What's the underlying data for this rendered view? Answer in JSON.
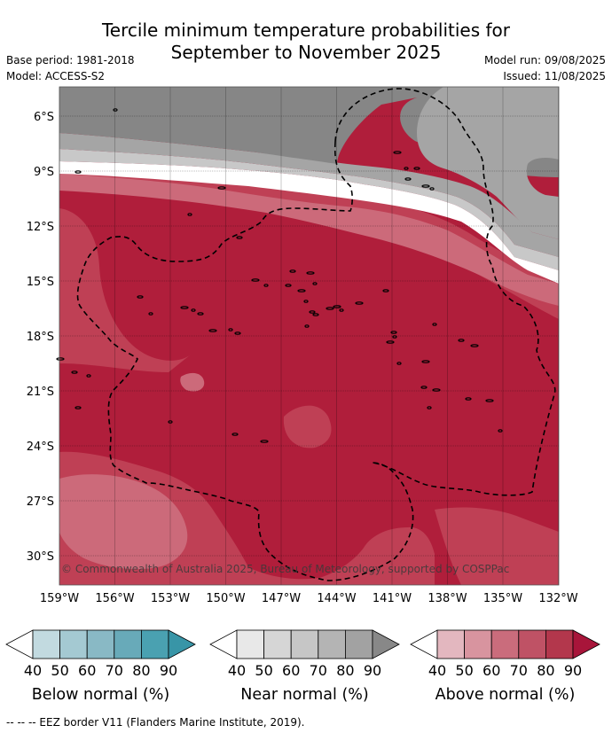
{
  "title": {
    "line1": "Tercile minimum temperature probabilities for",
    "line2": "September to November 2025"
  },
  "meta": {
    "base_period": "Base period: 1981-2018",
    "model": "Model: ACCESS-S2",
    "model_run": "Model run: 09/08/2025",
    "issued": "Issued: 11/08/2025"
  },
  "map": {
    "lat_labels": [
      "6°S",
      "9°S",
      "12°S",
      "15°S",
      "18°S",
      "21°S",
      "24°S",
      "27°S",
      "30°S"
    ],
    "lon_labels": [
      "159°W",
      "156°W",
      "153°W",
      "150°W",
      "147°W",
      "144°W",
      "141°W",
      "138°W",
      "135°W",
      "132°W"
    ],
    "copyright": "© Commonwealth of Australia 2025, Bureau of Meteorology, supported by COSPPac",
    "colors": {
      "above_90": "#b01e3b",
      "above_80": "#bf4055",
      "above_70": "#cc6a7a",
      "near_70": "#c8c8c8",
      "near_80": "#a5a5a5",
      "near_90": "#868686",
      "white": "#ffffff"
    }
  },
  "legends": [
    {
      "label": "Below normal (%)",
      "ticks": [
        "40",
        "50",
        "60",
        "70",
        "80",
        "90"
      ],
      "colors": [
        "#ffffff",
        "#c2dae0",
        "#a4c9d2",
        "#89b9c5",
        "#68aab9",
        "#4aa1b1",
        "#3895a7"
      ]
    },
    {
      "label": "Near normal (%)",
      "ticks": [
        "40",
        "50",
        "60",
        "70",
        "80",
        "90"
      ],
      "colors": [
        "#ffffff",
        "#e8e8e8",
        "#d6d6d6",
        "#c6c6c6",
        "#b4b4b4",
        "#a2a2a2",
        "#888888"
      ]
    },
    {
      "label": "Above normal (%)",
      "ticks": [
        "40",
        "50",
        "60",
        "70",
        "80",
        "90"
      ],
      "colors": [
        "#ffffff",
        "#e3b7bf",
        "#d8949f",
        "#ca6c7c",
        "#bf5265",
        "#b3374c",
        "#a8153a"
      ]
    }
  ],
  "footer": "-- -- -- EEZ border V11 (Flanders Marine Institute, 2019)."
}
